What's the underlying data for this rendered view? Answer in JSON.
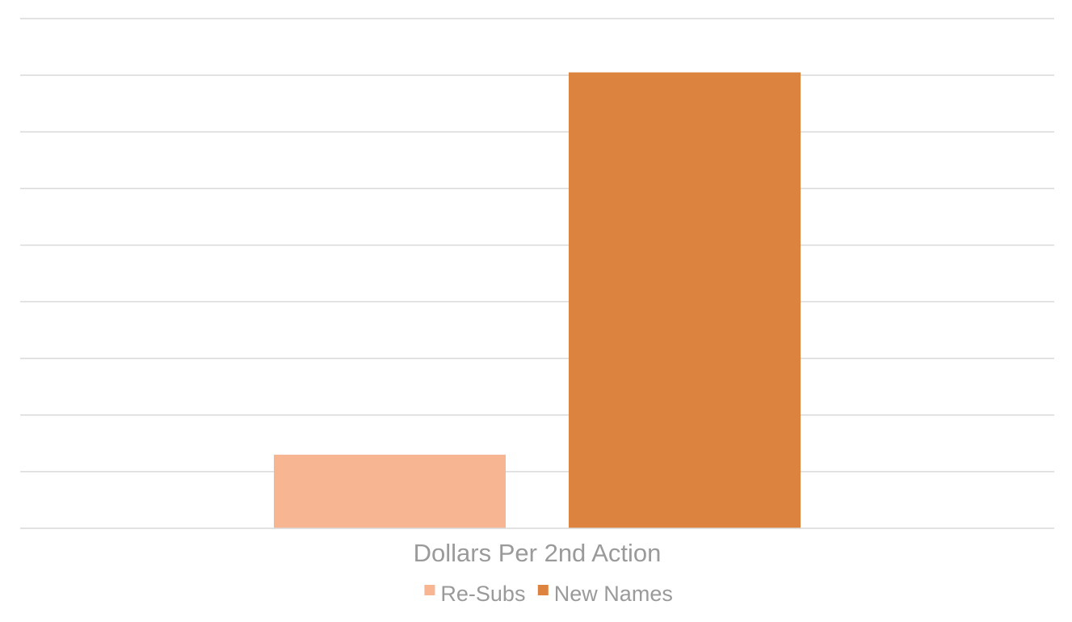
{
  "chart_data": {
    "type": "bar",
    "categories": [
      "Dollars Per 2nd Action"
    ],
    "series": [
      {
        "name": "Re-Subs",
        "values": [
          1.3
        ],
        "color": "#f8b592"
      },
      {
        "name": "New Names",
        "values": [
          8.05
        ],
        "color": "#dc843f"
      }
    ],
    "title": "",
    "xlabel": "",
    "ylabel": "",
    "ylim": [
      0,
      9
    ],
    "y_tick_step": 1,
    "y_tick_labels_visible": false,
    "grid": true,
    "legend_placement": "bottom"
  }
}
